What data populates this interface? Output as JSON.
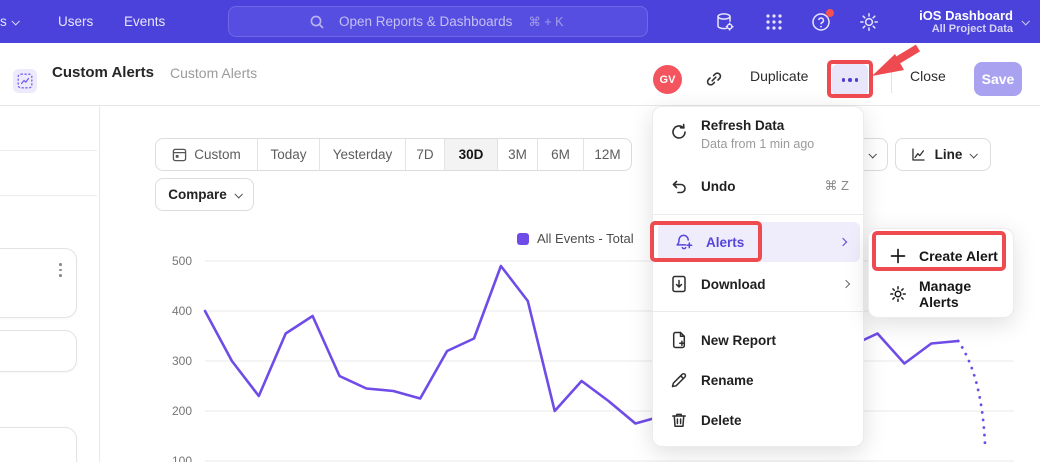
{
  "topbar": {
    "nav_left_partial": "s",
    "nav_items": [
      "Users",
      "Events"
    ],
    "search": {
      "placeholder": "Open Reports & Dashboards",
      "shortcut": "⌘ + K"
    },
    "project": {
      "name": "iOS Dashboard",
      "scope": "All Project Data"
    }
  },
  "header": {
    "title": "Custom Alerts",
    "breadcrumb": "Custom Alerts",
    "avatar_initials": "GV",
    "duplicate_label": "Duplicate",
    "close_label": "Close",
    "save_label": "Save"
  },
  "controls": {
    "ranges": [
      "Custom",
      "Today",
      "Yesterday",
      "7D",
      "30D",
      "3M",
      "6M",
      "12M"
    ],
    "selected_range": "30D",
    "compare_label": "Compare",
    "chart_type_label": "Line"
  },
  "menu": {
    "refresh": {
      "label": "Refresh Data",
      "subtitle": "Data from 1 min ago"
    },
    "undo": {
      "label": "Undo",
      "shortcut": "⌘ Z"
    },
    "alerts": {
      "label": "Alerts"
    },
    "download": {
      "label": "Download"
    },
    "new_report": {
      "label": "New Report"
    },
    "rename": {
      "label": "Rename"
    },
    "delete": {
      "label": "Delete"
    }
  },
  "submenu": {
    "create_alert": "Create Alert",
    "manage_alerts": "Manage Alerts"
  },
  "chart_data": {
    "type": "line",
    "title": "",
    "legend": [
      "All Events - Total"
    ],
    "legend_position": "top",
    "grid": "horizontal",
    "ylim": [
      100,
      500
    ],
    "yticks": [
      500,
      400,
      300,
      200,
      100
    ],
    "x_axis_labels_visible": false,
    "x": [
      1,
      2,
      3,
      4,
      5,
      6,
      7,
      8,
      9,
      10,
      11,
      12,
      13,
      14,
      15,
      16,
      17,
      18,
      19,
      20,
      21,
      22,
      23,
      24,
      25,
      26,
      27,
      28,
      29,
      30
    ],
    "series": [
      {
        "name": "All Events - Total",
        "color": "#6f4ce8",
        "values": [
          400,
          300,
          230,
          355,
          390,
          270,
          245,
          240,
          225,
          320,
          345,
          490,
          420,
          200,
          260,
          220,
          175,
          190,
          210,
          250,
          230,
          280,
          310,
          290,
          330,
          355,
          295,
          335,
          340,
          130
        ],
        "last_segment_provisional_dotted": true
      }
    ]
  },
  "annotations": {
    "highlight_color": "#ee4b51",
    "targets": [
      "more-options-button",
      "alerts-menu-item",
      "create-alert-item"
    ]
  },
  "colors": {
    "topbar_bg": "#4a42da",
    "accent_purple": "#5546d8",
    "line_purple": "#6f4ce8",
    "avatar_red": "#f4545e",
    "save_button_bg": "#a9a2f0",
    "annotation_red": "#ee4b51",
    "menu_highlight_bg": "#efecfc"
  }
}
